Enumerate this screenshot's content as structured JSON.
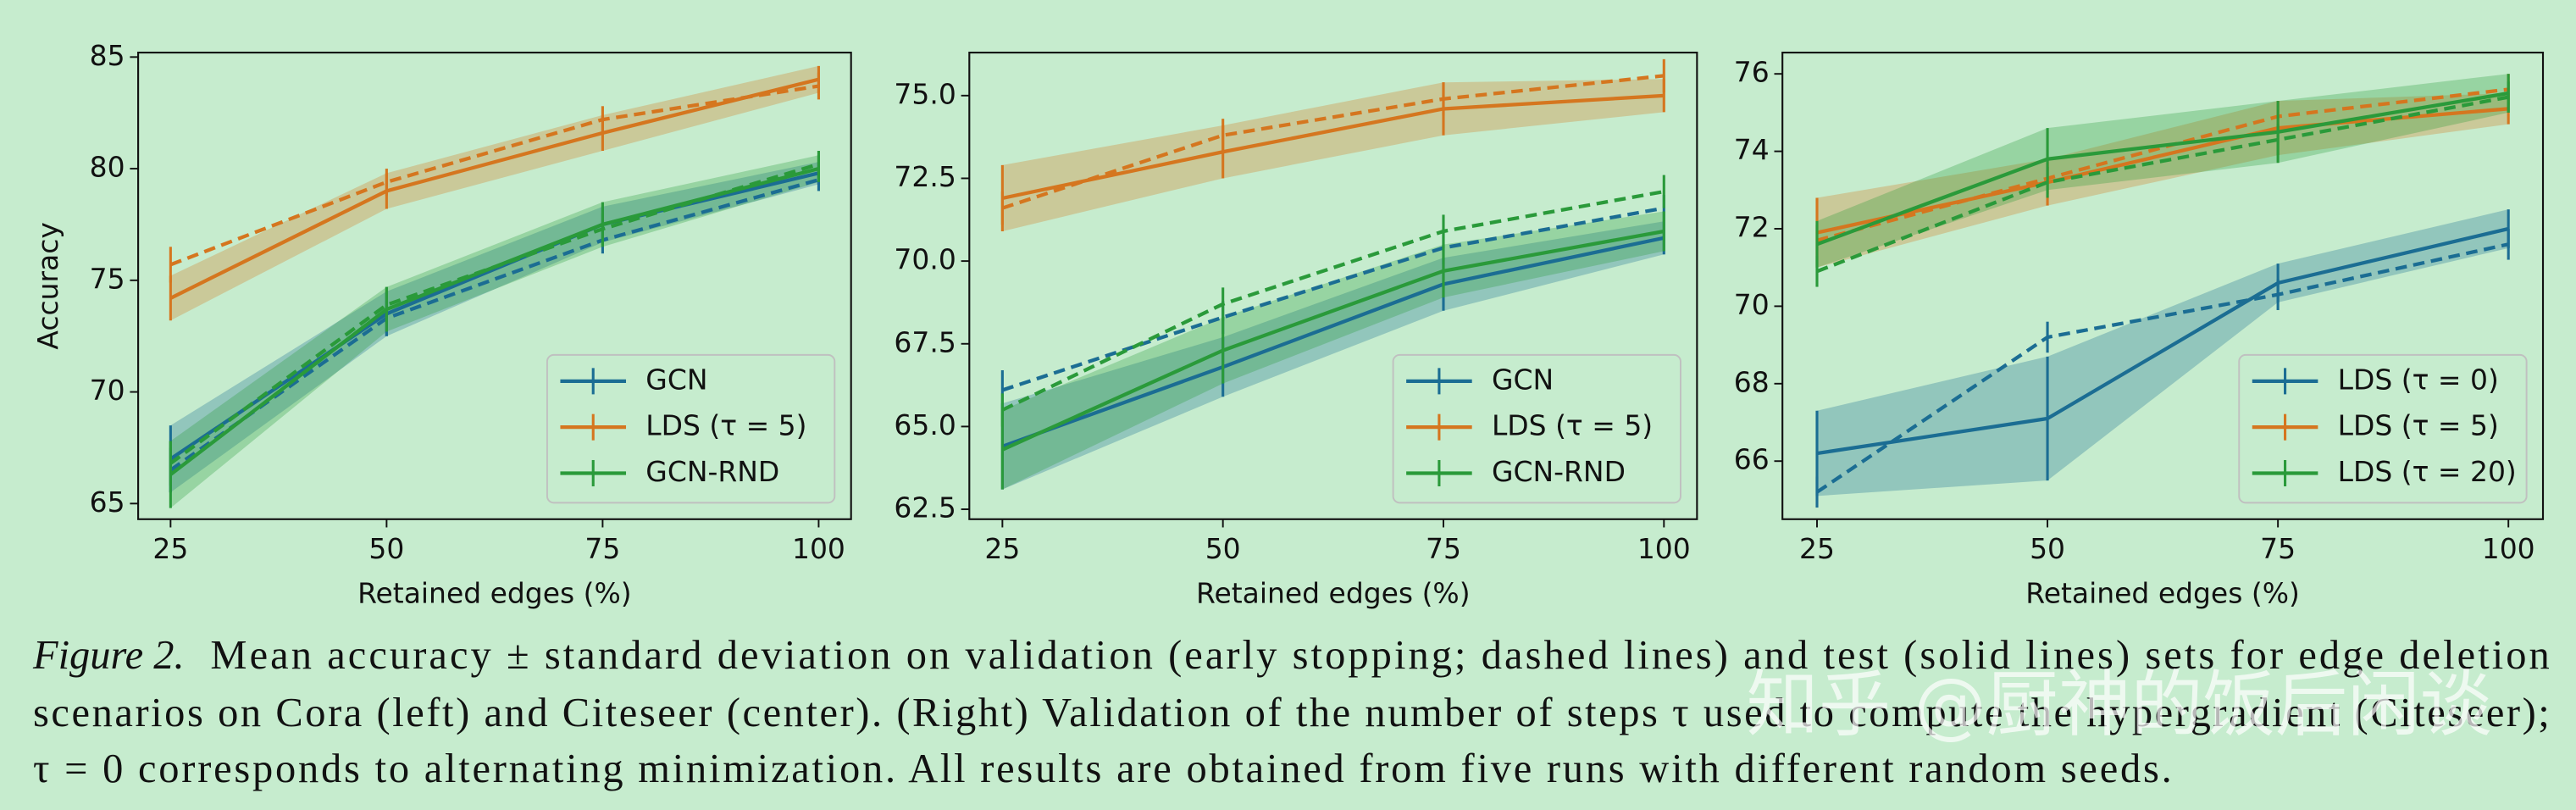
{
  "chart_data": [
    {
      "type": "line",
      "xlabel": "Retained edges (%)",
      "ylabel": "Accuracy",
      "x": [
        25,
        50,
        75,
        100
      ],
      "xlim": [
        21.25,
        103.75
      ],
      "xticks": [
        25,
        50,
        75,
        100
      ],
      "ylim": [
        64.3,
        85.2
      ],
      "yticks": [
        65,
        70,
        75,
        80,
        85
      ],
      "legend": "lower right",
      "series": [
        {
          "name": "GCN",
          "color": "#1b6d93",
          "values": [
            67.0,
            73.5,
            77.5,
            79.8
          ],
          "std": [
            1.5,
            1.0,
            0.8,
            0.5
          ],
          "validation_values": [
            66.5,
            73.3,
            76.8,
            79.5
          ],
          "validation_std": [
            1.0,
            0.8,
            0.6,
            0.5
          ]
        },
        {
          "name": "LDS (τ = 5)",
          "color": "#d5761f",
          "values": [
            74.2,
            79.0,
            81.6,
            84.0
          ],
          "std": [
            1.0,
            0.8,
            0.8,
            0.6
          ],
          "validation_values": [
            75.7,
            79.4,
            82.2,
            83.7
          ],
          "validation_std": [
            0.8,
            0.6,
            0.6,
            0.6
          ]
        },
        {
          "name": "GCN-RND",
          "color": "#2a9a3a",
          "values": [
            66.3,
            73.7,
            77.5,
            80.0
          ],
          "std": [
            1.5,
            1.0,
            1.0,
            0.6
          ],
          "validation_values": [
            66.8,
            73.9,
            77.3,
            80.2
          ],
          "validation_std": [
            1.0,
            0.8,
            0.7,
            0.6
          ]
        }
      ]
    },
    {
      "type": "line",
      "xlabel": "Retained edges (%)",
      "x": [
        25,
        50,
        75,
        100
      ],
      "xlim": [
        21.25,
        103.75
      ],
      "xticks": [
        25,
        50,
        75,
        100
      ],
      "ylim": [
        62.2,
        76.3
      ],
      "yticks": [
        62.5,
        {
          "value": 65,
          "label": "65.0"
        },
        67.5,
        {
          "value": 70,
          "label": "70.0"
        },
        72.5,
        {
          "value": 75,
          "label": "75.0"
        }
      ],
      "legend": "lower right",
      "series": [
        {
          "name": "GCN",
          "color": "#1b6d93",
          "values": [
            64.4,
            66.8,
            69.3,
            70.7
          ],
          "std": [
            1.3,
            0.9,
            0.8,
            0.5
          ],
          "validation_values": [
            66.1,
            68.3,
            70.4,
            71.6
          ],
          "validation_std": [
            0.6,
            0.5,
            0.5,
            0.4
          ]
        },
        {
          "name": "LDS (τ = 5)",
          "color": "#d5761f",
          "values": [
            71.9,
            73.3,
            74.6,
            75.0
          ],
          "std": [
            1.0,
            0.8,
            0.8,
            0.5
          ],
          "validation_values": [
            71.6,
            73.8,
            74.9,
            75.6
          ],
          "validation_std": [
            0.5,
            0.5,
            0.5,
            0.5
          ]
        },
        {
          "name": "GCN-RND",
          "color": "#2a9a3a",
          "values": [
            64.3,
            67.3,
            69.7,
            70.9
          ],
          "std": [
            1.2,
            1.0,
            0.8,
            0.6
          ],
          "validation_values": [
            65.5,
            68.7,
            70.9,
            72.1
          ],
          "validation_std": [
            0.5,
            0.5,
            0.5,
            0.5
          ]
        }
      ]
    },
    {
      "type": "line",
      "xlabel": "Retained edges (%)",
      "x": [
        25,
        50,
        75,
        100
      ],
      "xlim": [
        21.25,
        103.75
      ],
      "xticks": [
        25,
        50,
        75,
        100
      ],
      "ylim": [
        64.5,
        76.55
      ],
      "yticks": [
        66,
        68,
        70,
        72,
        74,
        76
      ],
      "legend": "lower right",
      "series": [
        {
          "name": "LDS (τ = 0)",
          "color": "#1b6d93",
          "values": [
            66.2,
            67.1,
            70.6,
            72.0
          ],
          "std": [
            1.1,
            1.6,
            0.5,
            0.5
          ],
          "validation_values": [
            65.2,
            69.2,
            70.3,
            71.6
          ],
          "validation_std": [
            0.4,
            0.4,
            0.4,
            0.4
          ]
        },
        {
          "name": "LDS (τ = 5)",
          "color": "#d5761f",
          "values": [
            71.9,
            73.2,
            74.6,
            75.1
          ],
          "std": [
            0.9,
            0.6,
            0.7,
            0.4
          ],
          "validation_values": [
            71.7,
            73.3,
            74.9,
            75.6
          ],
          "validation_std": [
            0.4,
            0.4,
            0.4,
            0.4
          ]
        },
        {
          "name": "LDS (τ = 20)",
          "color": "#2a9a3a",
          "values": [
            71.6,
            73.8,
            74.5,
            75.5
          ],
          "std": [
            0.6,
            0.8,
            0.8,
            0.5
          ],
          "validation_values": [
            70.9,
            73.2,
            74.3,
            75.4
          ],
          "validation_std": [
            0.4,
            0.4,
            0.4,
            0.4
          ]
        }
      ]
    }
  ],
  "caption": {
    "label": "Figure 2.",
    "lines": [
      "Mean accuracy ± standard deviation on validation (early stopping; dashed lines) and test (solid lines) sets for edge deletion",
      "scenarios on Cora (left) and Citeseer (center). (Right) Validation of the number of steps τ used to compute the hypergradient (Citeseer);",
      "τ = 0 corresponds to alternating minimization. All results are obtained from five runs with different random seeds."
    ]
  },
  "watermark": "知乎 @厨神的饭后闲谈"
}
